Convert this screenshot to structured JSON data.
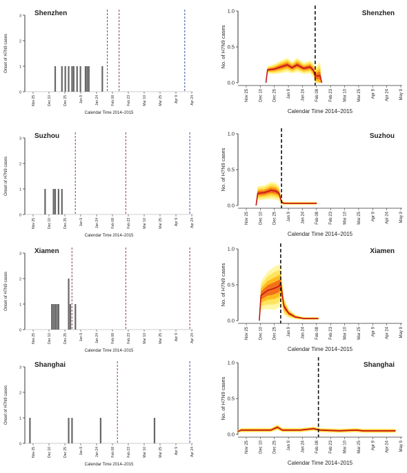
{
  "chart_data": [
    {
      "type": "bar",
      "city": "Shenzhen",
      "ylabel": "Onset of H7N9 cases",
      "xlabel": "Calendar Time 2014–2015",
      "yticks": [
        0,
        1,
        2,
        3
      ],
      "ylim": [
        0,
        3
      ],
      "xticks": [
        "Nov 25",
        "Dec 10",
        "Dec 25",
        "Jan 9",
        "Jan 24",
        "Feb 08",
        "Feb 23",
        "Mar 10",
        "Mar 25",
        "Apr 9",
        "Apr 24"
      ],
      "counts": [
        {
          "x": 0.18,
          "v": 1
        },
        {
          "x": 0.22,
          "v": 1
        },
        {
          "x": 0.24,
          "v": 1
        },
        {
          "x": 0.26,
          "v": 1
        },
        {
          "x": 0.28,
          "v": 1
        },
        {
          "x": 0.29,
          "v": 1
        },
        {
          "x": 0.31,
          "v": 1
        },
        {
          "x": 0.33,
          "v": 1
        },
        {
          "x": 0.36,
          "v": 1
        },
        {
          "x": 0.37,
          "v": 1
        },
        {
          "x": 0.38,
          "v": 1
        },
        {
          "x": 0.46,
          "v": 1
        }
      ],
      "vlines": [
        {
          "x": 0.49,
          "color": "#8a3a5a"
        },
        {
          "x": 0.56,
          "color": "#8a3a5a"
        },
        {
          "x": 0.95,
          "color": "#3a4a9a"
        }
      ]
    },
    {
      "type": "area",
      "city": "Shenzhen",
      "ylabel": "No. of H7N9 cases",
      "xlabel": "Calendar Time 2014–2015",
      "yticks": [
        "0.0",
        "0.5",
        "1.0"
      ],
      "ylim": [
        0,
        1
      ],
      "xticks": [
        "Nov 25",
        "Dec 10",
        "Dec 25",
        "Jan 9",
        "Jan 24",
        "Feb 08",
        "Feb 23",
        "Mar 10",
        "Mar 25",
        "Apr 9",
        "Apr 24",
        "May 9"
      ],
      "mean": [
        [
          0.17,
          0
        ],
        [
          0.18,
          0.18
        ],
        [
          0.22,
          0.19
        ],
        [
          0.26,
          0.22
        ],
        [
          0.3,
          0.25
        ],
        [
          0.33,
          0.21
        ],
        [
          0.36,
          0.25
        ],
        [
          0.4,
          0.2
        ],
        [
          0.44,
          0.22
        ],
        [
          0.46,
          0.17
        ],
        [
          0.47,
          0.09
        ],
        [
          0.5,
          0.1
        ],
        [
          0.51,
          0.0
        ]
      ],
      "band": [
        0.08,
        0.05,
        0.07,
        0.09,
        0.1,
        0.08,
        0.1,
        0.08,
        0.09,
        0.1,
        0.12,
        0.2,
        0.0
      ],
      "vline": 0.47
    },
    {
      "type": "bar",
      "city": "Suzhou",
      "ylabel": "Onset of H7N9 cases",
      "xlabel": "Calendar Time 2014–2015",
      "yticks": [
        0,
        1,
        2,
        3
      ],
      "ylim": [
        0,
        3
      ],
      "xticks": [
        "Nov 25",
        "Dec 10",
        "Dec 25",
        "Jan 9",
        "Jan 24",
        "Feb 08",
        "Feb 23",
        "Mar 10",
        "Mar 25",
        "Apr 9",
        "Apr 24"
      ],
      "counts": [
        {
          "x": 0.12,
          "v": 1
        },
        {
          "x": 0.17,
          "v": 1
        },
        {
          "x": 0.18,
          "v": 1
        },
        {
          "x": 0.2,
          "v": 1
        },
        {
          "x": 0.22,
          "v": 1
        }
      ],
      "vlines": [
        {
          "x": 0.3,
          "color": "#8a3a5a"
        },
        {
          "x": 0.6,
          "color": "#8a3a5a"
        },
        {
          "x": 0.98,
          "color": "#3a4a9a"
        }
      ]
    },
    {
      "type": "area",
      "city": "Suzhou",
      "ylabel": "No. of H7N9 cases",
      "xlabel": "Calendar Time 2014–2015",
      "yticks": [
        "0.0",
        "0.5",
        "1.0"
      ],
      "ylim": [
        0,
        1
      ],
      "xticks": [
        "Nov 25",
        "Dec 10",
        "Dec 25",
        "Jan 9",
        "Jan 24",
        "Feb 08",
        "Feb 23",
        "Mar 10",
        "Mar 25",
        "Apr 9",
        "Apr 24",
        "May 9"
      ],
      "mean": [
        [
          0.11,
          0
        ],
        [
          0.12,
          0.17
        ],
        [
          0.16,
          0.18
        ],
        [
          0.2,
          0.21
        ],
        [
          0.23,
          0.2
        ],
        [
          0.25,
          0.17
        ],
        [
          0.265,
          0.05
        ],
        [
          0.28,
          0.03
        ],
        [
          0.4,
          0.03
        ],
        [
          0.48,
          0.03
        ]
      ],
      "band": [
        0.06,
        0.1,
        0.1,
        0.12,
        0.12,
        0.1,
        0.04,
        0.02,
        0.02,
        0.02
      ],
      "vline": 0.265
    },
    {
      "type": "bar",
      "city": "Xiamen",
      "ylabel": "Onset of H7N9 cases",
      "xlabel": "Calendar Time 2014–2015",
      "yticks": [
        0,
        1,
        2,
        3
      ],
      "ylim": [
        0,
        3
      ],
      "xticks": [
        "Nov 25",
        "Dec 10",
        "Dec 25",
        "Jan 9",
        "Jan 24",
        "Feb 08",
        "Feb 23",
        "Mar 10",
        "Mar 25",
        "Apr 9",
        "Apr 24"
      ],
      "counts": [
        {
          "x": 0.16,
          "v": 1
        },
        {
          "x": 0.17,
          "v": 1
        },
        {
          "x": 0.18,
          "v": 1
        },
        {
          "x": 0.19,
          "v": 1
        },
        {
          "x": 0.2,
          "v": 1
        },
        {
          "x": 0.26,
          "v": 2
        },
        {
          "x": 0.27,
          "v": 1
        },
        {
          "x": 0.3,
          "v": 1
        }
      ],
      "vlines": [
        {
          "x": 0.28,
          "color": "#8a3a5a"
        },
        {
          "x": 0.6,
          "color": "#8a3a5a"
        },
        {
          "x": 0.98,
          "color": "#8a3a5a"
        }
      ]
    },
    {
      "type": "area",
      "city": "Xiamen",
      "ylabel": "No. of H7N9 cases",
      "xlabel": "Calendar Time 2014–2015",
      "yticks": [
        "0.0",
        "0.5",
        "1.0"
      ],
      "ylim": [
        0,
        1
      ],
      "xticks": [
        "Nov 25",
        "Dec 10",
        "Dec 25",
        "Jan 9",
        "Jan 24",
        "Feb 08",
        "Feb 23",
        "Mar 10",
        "Mar 25",
        "Apr 9",
        "Apr 24",
        "May 9"
      ],
      "mean": [
        [
          0.13,
          0
        ],
        [
          0.14,
          0.35
        ],
        [
          0.18,
          0.42
        ],
        [
          0.22,
          0.45
        ],
        [
          0.25,
          0.48
        ],
        [
          0.26,
          0.52
        ],
        [
          0.28,
          0.2
        ],
        [
          0.31,
          0.1
        ],
        [
          0.35,
          0.05
        ],
        [
          0.4,
          0.03
        ],
        [
          0.49,
          0.03
        ]
      ],
      "band": [
        0.1,
        0.2,
        0.26,
        0.3,
        0.3,
        0.25,
        0.12,
        0.06,
        0.03,
        0.02,
        0.02
      ],
      "vline": 0.26
    },
    {
      "type": "bar",
      "city": "Shanghai",
      "ylabel": "Onset of H7N9 cases",
      "xlabel": "Calendar Time 2014–2015",
      "yticks": [
        0,
        1,
        2,
        3
      ],
      "ylim": [
        0,
        3
      ],
      "xticks": [
        "Nov 25",
        "Dec 10",
        "Dec 25",
        "Jan 9",
        "Jan 24",
        "Feb 08",
        "Feb 23",
        "Mar 10",
        "Mar 25",
        "Apr 9",
        "Apr 24"
      ],
      "counts": [
        {
          "x": 0.03,
          "v": 1
        },
        {
          "x": 0.26,
          "v": 1
        },
        {
          "x": 0.28,
          "v": 1
        },
        {
          "x": 0.45,
          "v": 1
        },
        {
          "x": 0.77,
          "v": 1
        }
      ],
      "vlines": [
        {
          "x": 0.55,
          "color": "#8a3a5a"
        },
        {
          "x": 0.98,
          "color": "#3a4a9a"
        }
      ]
    },
    {
      "type": "area",
      "city": "Shanghai",
      "ylabel": "No. of H7N9 cases",
      "xlabel": "Calendar Time 2014–2015",
      "yticks": [
        "0.0",
        "0.5",
        "1.0"
      ],
      "ylim": [
        0,
        1
      ],
      "xticks": [
        "Nov 25",
        "Dec 10",
        "Dec 25",
        "Jan 9",
        "Jan 24",
        "Feb 08",
        "Feb 23",
        "Mar 10",
        "Mar 25",
        "Apr 9",
        "Apr 24",
        "May 9"
      ],
      "mean": [
        [
          0.0,
          0.04
        ],
        [
          0.02,
          0.06
        ],
        [
          0.08,
          0.06
        ],
        [
          0.2,
          0.06
        ],
        [
          0.24,
          0.1
        ],
        [
          0.27,
          0.06
        ],
        [
          0.38,
          0.06
        ],
        [
          0.46,
          0.08
        ],
        [
          0.5,
          0.06
        ],
        [
          0.62,
          0.05
        ],
        [
          0.72,
          0.06
        ],
        [
          0.76,
          0.05
        ],
        [
          0.96,
          0.05
        ]
      ],
      "band": [
        0.02,
        0.03,
        0.03,
        0.03,
        0.04,
        0.03,
        0.03,
        0.03,
        0.03,
        0.03,
        0.03,
        0.03,
        0.03
      ],
      "vline": 0.49
    }
  ]
}
